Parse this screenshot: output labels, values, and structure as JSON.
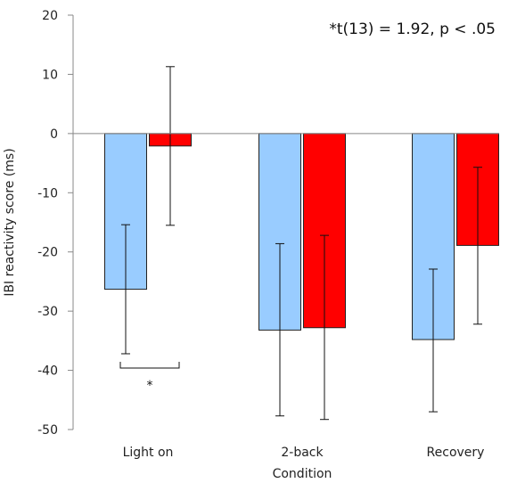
{
  "chart_data": {
    "type": "bar",
    "title": "",
    "xlabel": "Condition",
    "ylabel": "IBI reactivity score (ms)",
    "ylim": [
      -50,
      20
    ],
    "yticks": [
      20,
      10,
      0,
      -10,
      -20,
      -30,
      -40,
      -50
    ],
    "ytick_labels": [
      "20",
      "10",
      "0",
      "-10",
      "-20",
      "-30",
      "-40",
      "-50"
    ],
    "categories": [
      "Light on",
      "2-back",
      "Recovery"
    ],
    "series": [
      {
        "color": "#99ccff",
        "values": [
          -26.3,
          -33.2,
          -34.8
        ],
        "err_low": [
          -37.2,
          -47.7,
          -47.0
        ],
        "err_high": [
          -15.4,
          -18.6,
          -22.9
        ]
      },
      {
        "color": "#ff0000",
        "values": [
          -2.1,
          -32.8,
          -18.9
        ],
        "err_low": [
          -15.5,
          -48.3,
          -32.2
        ],
        "err_high": [
          11.3,
          -17.2,
          -5.7
        ]
      }
    ],
    "annotation": "*t(13) = 1.92, p < .05",
    "significance": {
      "category_index": 0,
      "symbol": "*"
    },
    "grid": false,
    "legend": "none"
  }
}
